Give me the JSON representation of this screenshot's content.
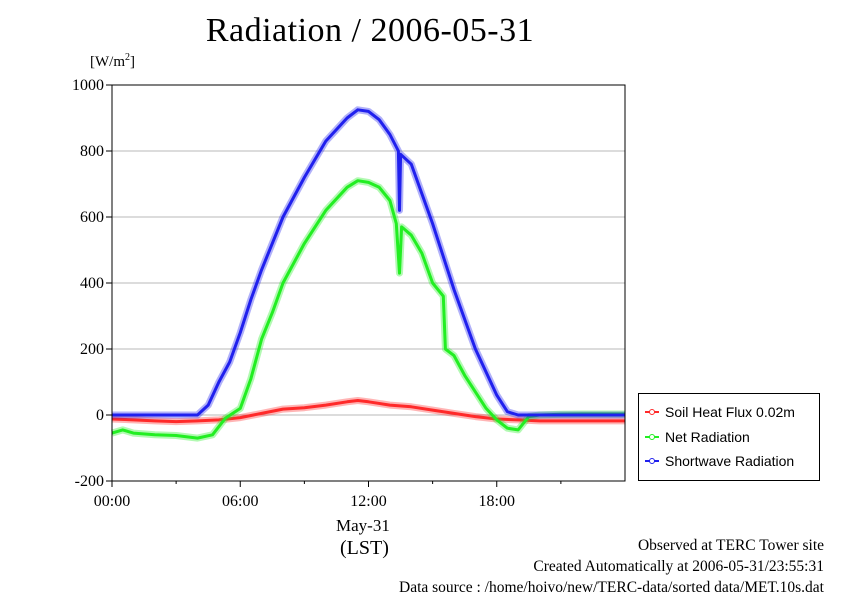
{
  "chart_data": {
    "type": "line",
    "title": "Radiation / 2006-05-31",
    "unit_label": "[W/m2]",
    "ylim": [
      -200,
      1000
    ],
    "xlim": [
      0,
      24
    ],
    "yticks": [
      "1000",
      "800",
      "600",
      "400",
      "200",
      "0",
      "-200"
    ],
    "xticks": [
      "00:00",
      "06:00",
      "12:00",
      "18:00"
    ],
    "date_label": "May-31",
    "xlabel": "(LST)",
    "grid": true,
    "legend_position": "right-bottom",
    "series": [
      {
        "name": "Soil Heat Flux 0.02m",
        "color": "#ff2a2a",
        "x": [
          0,
          1,
          2,
          3,
          4,
          5,
          6,
          7,
          8,
          9,
          10,
          11,
          11.5,
          12,
          13,
          14,
          15,
          16,
          17,
          18,
          19,
          20,
          21,
          22,
          23,
          24
        ],
        "y": [
          -12,
          -15,
          -18,
          -20,
          -18,
          -15,
          -8,
          5,
          18,
          22,
          30,
          40,
          44,
          40,
          30,
          25,
          15,
          5,
          -5,
          -12,
          -15,
          -18,
          -18,
          -18,
          -18,
          -18
        ]
      },
      {
        "name": "Net Radiation",
        "color": "#22ee22",
        "x": [
          0,
          0.5,
          1,
          2,
          3,
          4,
          4.7,
          5.3,
          6,
          6.5,
          7,
          7.5,
          8,
          9,
          10,
          11,
          11.5,
          12,
          12.5,
          13,
          13.3,
          13.45,
          13.55,
          14,
          14.5,
          15,
          15.5,
          15.6,
          16,
          16.5,
          17,
          17.5,
          18,
          18.5,
          19,
          19.5,
          20,
          21,
          22,
          23,
          24
        ],
        "y": [
          -55,
          -45,
          -55,
          -60,
          -62,
          -70,
          -60,
          -10,
          20,
          110,
          230,
          310,
          400,
          520,
          620,
          690,
          710,
          705,
          690,
          650,
          580,
          430,
          570,
          545,
          490,
          400,
          360,
          200,
          180,
          120,
          70,
          20,
          -15,
          -40,
          -45,
          -5,
          0,
          2,
          3,
          3,
          3
        ]
      },
      {
        "name": "Shortwave Radiation",
        "color": "#2020ee",
        "x": [
          0,
          1,
          2,
          3,
          4,
          4.5,
          5,
          5.5,
          6,
          6.5,
          7,
          7.5,
          8,
          9,
          10,
          11,
          11.5,
          12,
          12.5,
          13,
          13.4,
          13.45,
          13.5,
          14,
          15,
          16,
          17,
          18,
          18.5,
          19,
          20,
          21,
          22,
          23,
          24
        ],
        "y": [
          0,
          0,
          0,
          0,
          0,
          30,
          100,
          160,
          250,
          350,
          440,
          520,
          600,
          720,
          830,
          900,
          925,
          920,
          895,
          850,
          800,
          620,
          790,
          760,
          580,
          380,
          200,
          60,
          10,
          0,
          0,
          0,
          0,
          0,
          0
        ]
      }
    ]
  },
  "footer": {
    "line1": "Observed at TERC Tower site",
    "line2": "Created Automatically at 2006-05-31/23:55:31",
    "line3": "Data source : /home/hoivo/new/TERC-data/sorted  data/MET.10s.dat"
  }
}
